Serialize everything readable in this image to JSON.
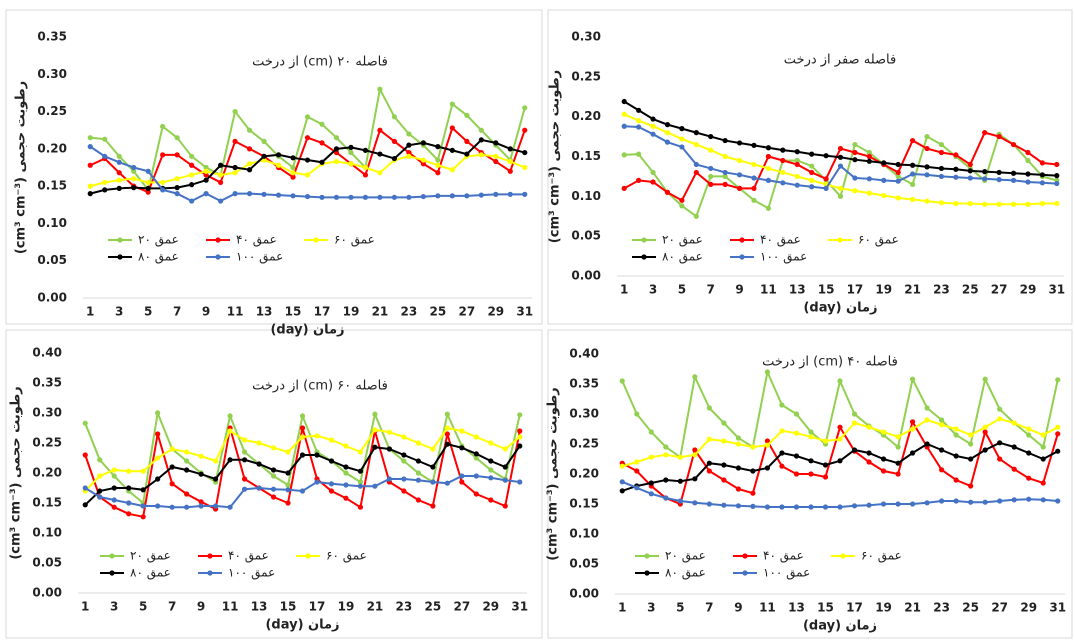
{
  "chart_data": [
    {
      "type": "line",
      "title": "فاصله ۲۰ (cm) از درخت",
      "xlabel": "زمان (day)",
      "ylabel": "رطوبت حجمی (cm³ cm⁻³)",
      "categories": [
        "1",
        null,
        "3",
        null,
        "5",
        null,
        "7",
        null,
        "9",
        null,
        "11",
        null,
        "13",
        null,
        "15",
        null,
        "17",
        null,
        "19",
        null,
        "21",
        null,
        "23",
        null,
        "25",
        null,
        "27",
        null,
        "29",
        null,
        "31"
      ],
      "ylim": [
        0,
        0.35
      ],
      "yticks": [
        {
          "value": 0,
          "label": "0.00"
        },
        {
          "value": 0.05,
          "label": "0.05"
        },
        {
          "value": 0.1,
          "label": "0.10"
        },
        {
          "value": 0.15,
          "label": "0.15"
        },
        {
          "value": 0.2,
          "label": "0.20"
        },
        {
          "value": 0.25,
          "label": "0.25"
        },
        {
          "value": 0.3,
          "label": "0.30"
        },
        {
          "value": 0.35,
          "label": "0.35"
        }
      ],
      "grid": false,
      "series": [
        {
          "name": "عمق ۲۰",
          "color": "#92d050",
          "values": [
            0.215,
            0.213,
            0.19,
            0.17,
            0.145,
            0.23,
            0.215,
            0.19,
            0.175,
            0.165,
            0.25,
            0.225,
            0.21,
            0.19,
            0.175,
            0.243,
            0.233,
            0.215,
            0.195,
            0.175,
            0.28,
            0.243,
            0.22,
            0.205,
            0.185,
            0.26,
            0.245,
            0.225,
            0.205,
            0.185,
            0.255
          ]
        },
        {
          "name": "عمق ۴۰",
          "color": "#ff0000",
          "values": [
            0.178,
            0.187,
            0.168,
            0.15,
            0.142,
            0.192,
            0.192,
            0.178,
            0.165,
            0.155,
            0.21,
            0.2,
            0.19,
            0.175,
            0.162,
            0.215,
            0.208,
            0.195,
            0.18,
            0.165,
            0.225,
            0.21,
            0.195,
            0.18,
            0.168,
            0.228,
            0.21,
            0.195,
            0.183,
            0.17,
            0.225
          ]
        },
        {
          "name": "عمق ۶۰",
          "color": "#ffff00",
          "values": [
            0.15,
            0.155,
            0.158,
            0.16,
            0.155,
            0.155,
            0.16,
            0.165,
            0.17,
            0.165,
            0.168,
            0.18,
            0.185,
            0.178,
            0.168,
            0.165,
            0.18,
            0.183,
            0.18,
            0.175,
            0.168,
            0.185,
            0.19,
            0.185,
            0.178,
            0.172,
            0.19,
            0.192,
            0.19,
            0.183,
            0.175
          ]
        },
        {
          "name": "عمق ۸۰",
          "color": "#000000",
          "values": [
            0.14,
            0.145,
            0.147,
            0.148,
            0.147,
            0.147,
            0.148,
            0.152,
            0.158,
            0.178,
            0.175,
            0.172,
            0.19,
            0.192,
            0.188,
            0.185,
            0.182,
            0.2,
            0.202,
            0.198,
            0.193,
            0.187,
            0.205,
            0.208,
            0.203,
            0.198,
            0.193,
            0.212,
            0.208,
            0.2,
            0.195
          ]
        },
        {
          "name": "عمق ۱۰۰",
          "color": "#4472c4",
          "values": [
            0.203,
            0.19,
            0.182,
            0.175,
            0.17,
            0.145,
            0.14,
            0.13,
            0.14,
            0.13,
            0.14,
            0.14,
            0.139,
            0.138,
            0.137,
            0.136,
            0.135,
            0.135,
            0.135,
            0.135,
            0.135,
            0.135,
            0.135,
            0.136,
            0.137,
            0.137,
            0.137,
            0.138,
            0.139,
            0.139,
            0.139
          ]
        }
      ]
    },
    {
      "type": "line",
      "title": "فاصله صفر از درخت",
      "xlabel": "زمان (day)",
      "ylabel": "رطوبت حجمی (cm³ cm⁻³)",
      "categories": [
        "1",
        null,
        "3",
        null,
        "5",
        null,
        "7",
        null,
        "9",
        null,
        "11",
        null,
        "13",
        null,
        "15",
        null,
        "17",
        null,
        "19",
        null,
        "21",
        null,
        "23",
        null,
        "25",
        null,
        "27",
        null,
        "29",
        null,
        "31"
      ],
      "ylim": [
        0,
        0.3
      ],
      "yticks": [
        {
          "value": 0,
          "label": "0.00"
        },
        {
          "value": 0.05,
          "label": "0.05"
        },
        {
          "value": 0.1,
          "label": "0.10"
        },
        {
          "value": 0.15,
          "label": "0.15"
        },
        {
          "value": 0.2,
          "label": "0.20"
        },
        {
          "value": 0.25,
          "label": "0.25"
        },
        {
          "value": 0.3,
          "label": "0.30"
        }
      ],
      "grid": false,
      "series": [
        {
          "name": "عمق ۲۰",
          "color": "#92d050",
          "values": [
            0.152,
            0.153,
            0.13,
            0.105,
            0.088,
            0.075,
            0.125,
            0.125,
            0.11,
            0.095,
            0.085,
            0.145,
            0.145,
            0.138,
            0.12,
            0.1,
            0.165,
            0.155,
            0.14,
            0.125,
            0.115,
            0.175,
            0.165,
            0.15,
            0.135,
            0.12,
            0.178,
            0.165,
            0.145,
            0.125,
            0.12
          ]
        },
        {
          "name": "عمق ۴۰",
          "color": "#ff0000",
          "values": [
            0.11,
            0.12,
            0.118,
            0.105,
            0.095,
            0.13,
            0.115,
            0.115,
            0.11,
            0.11,
            0.15,
            0.145,
            0.14,
            0.13,
            0.122,
            0.16,
            0.155,
            0.15,
            0.14,
            0.13,
            0.17,
            0.16,
            0.155,
            0.152,
            0.14,
            0.18,
            0.175,
            0.165,
            0.155,
            0.142,
            0.14
          ]
        },
        {
          "name": "عمق ۶۰",
          "color": "#ffff00",
          "values": [
            0.203,
            0.195,
            0.188,
            0.18,
            0.172,
            0.165,
            0.158,
            0.15,
            0.145,
            0.14,
            0.135,
            0.13,
            0.125,
            0.12,
            0.115,
            0.11,
            0.107,
            0.104,
            0.101,
            0.098,
            0.096,
            0.094,
            0.092,
            0.091,
            0.091,
            0.09,
            0.09,
            0.09,
            0.09,
            0.091,
            0.091
          ]
        },
        {
          "name": "عمق ۸۰",
          "color": "#000000",
          "values": [
            0.219,
            0.208,
            0.197,
            0.19,
            0.185,
            0.18,
            0.175,
            0.17,
            0.167,
            0.164,
            0.161,
            0.158,
            0.156,
            0.153,
            0.151,
            0.149,
            0.146,
            0.144,
            0.142,
            0.14,
            0.139,
            0.137,
            0.135,
            0.134,
            0.132,
            0.131,
            0.13,
            0.129,
            0.128,
            0.127,
            0.126
          ]
        },
        {
          "name": "عمق ۱۰۰",
          "color": "#4472c4",
          "values": [
            0.188,
            0.187,
            0.178,
            0.168,
            0.162,
            0.14,
            0.135,
            0.13,
            0.127,
            0.123,
            0.12,
            0.117,
            0.114,
            0.112,
            0.11,
            0.138,
            0.123,
            0.122,
            0.12,
            0.119,
            0.128,
            0.127,
            0.125,
            0.124,
            0.123,
            0.122,
            0.121,
            0.12,
            0.118,
            0.117,
            0.116
          ]
        }
      ]
    },
    {
      "type": "line",
      "title": "فاصله ۶۰ (cm) از درخت",
      "xlabel": "زمان (day)",
      "ylabel": "رطوبت حجمی (cm³ cm⁻³)",
      "categories": [
        "1",
        null,
        "3",
        null,
        "5",
        null,
        "7",
        null,
        "9",
        null,
        "11",
        null,
        "13",
        null,
        "15",
        null,
        "17",
        null,
        "19",
        null,
        "21",
        null,
        "23",
        null,
        "25",
        null,
        "27",
        null,
        "29",
        null,
        "31"
      ],
      "ylim": [
        0,
        0.4
      ],
      "yticks": [
        {
          "value": 0,
          "label": "0.00"
        },
        {
          "value": 0.05,
          "label": "0.05"
        },
        {
          "value": 0.1,
          "label": "0.10"
        },
        {
          "value": 0.15,
          "label": "0.15"
        },
        {
          "value": 0.2,
          "label": "0.20"
        },
        {
          "value": 0.25,
          "label": "0.25"
        },
        {
          "value": 0.3,
          "label": "0.30"
        },
        {
          "value": 0.35,
          "label": "0.35"
        },
        {
          "value": 0.4,
          "label": "0.40"
        }
      ],
      "grid": false,
      "series": [
        {
          "name": "عمق ۲۰",
          "color": "#92d050",
          "values": [
            0.283,
            0.222,
            0.195,
            0.17,
            0.15,
            0.3,
            0.24,
            0.22,
            0.2,
            0.185,
            0.295,
            0.235,
            0.215,
            0.195,
            0.18,
            0.295,
            0.235,
            0.22,
            0.2,
            0.185,
            0.298,
            0.24,
            0.22,
            0.2,
            0.185,
            0.298,
            0.245,
            0.225,
            0.205,
            0.19,
            0.297
          ]
        },
        {
          "name": "عمق ۴۰",
          "color": "#ff0000",
          "values": [
            0.23,
            0.16,
            0.143,
            0.132,
            0.127,
            0.265,
            0.182,
            0.165,
            0.152,
            0.14,
            0.275,
            0.19,
            0.175,
            0.16,
            0.15,
            0.275,
            0.19,
            0.17,
            0.158,
            0.143,
            0.27,
            0.185,
            0.17,
            0.155,
            0.145,
            0.265,
            0.185,
            0.165,
            0.155,
            0.145,
            0.27
          ]
        },
        {
          "name": "عمق ۶۰",
          "color": "#ffff00",
          "values": [
            0.17,
            0.195,
            0.205,
            0.203,
            0.203,
            0.225,
            0.24,
            0.235,
            0.228,
            0.22,
            0.27,
            0.255,
            0.25,
            0.242,
            0.235,
            0.26,
            0.262,
            0.255,
            0.245,
            0.235,
            0.272,
            0.268,
            0.26,
            0.25,
            0.24,
            0.275,
            0.27,
            0.26,
            0.25,
            0.24,
            0.26
          ]
        },
        {
          "name": "عمق ۸۰",
          "color": "#000000",
          "values": [
            0.147,
            0.17,
            0.175,
            0.175,
            0.172,
            0.19,
            0.21,
            0.205,
            0.198,
            0.19,
            0.222,
            0.222,
            0.215,
            0.205,
            0.2,
            0.23,
            0.23,
            0.22,
            0.21,
            0.203,
            0.243,
            0.24,
            0.23,
            0.22,
            0.21,
            0.248,
            0.242,
            0.232,
            0.22,
            0.21,
            0.245
          ]
        },
        {
          "name": "عمق ۱۰۰",
          "color": "#4472c4",
          "values": [
            0.175,
            0.16,
            0.155,
            0.15,
            0.145,
            0.145,
            0.143,
            0.143,
            0.145,
            0.145,
            0.143,
            0.173,
            0.175,
            0.173,
            0.172,
            0.17,
            0.185,
            0.182,
            0.18,
            0.178,
            0.178,
            0.19,
            0.19,
            0.188,
            0.185,
            0.183,
            0.195,
            0.195,
            0.192,
            0.188,
            0.185
          ]
        }
      ]
    },
    {
      "type": "line",
      "title": "فاصله ۴۰ (cm) از درخت",
      "xlabel": "زمان (day)",
      "ylabel": "رطوبت حجمی (cm³ cm⁻³)",
      "categories": [
        "1",
        null,
        "3",
        null,
        "5",
        null,
        "7",
        null,
        "9",
        null,
        "11",
        null,
        "13",
        null,
        "15",
        null,
        "17",
        null,
        "19",
        null,
        "21",
        null,
        "23",
        null,
        "25",
        null,
        "27",
        null,
        "29",
        null,
        "31"
      ],
      "ylim": [
        0,
        0.4
      ],
      "yticks": [
        {
          "value": 0,
          "label": "0.00"
        },
        {
          "value": 0.05,
          "label": "0.05"
        },
        {
          "value": 0.1,
          "label": "0.10"
        },
        {
          "value": 0.15,
          "label": "0.15"
        },
        {
          "value": 0.2,
          "label": "0.20"
        },
        {
          "value": 0.25,
          "label": "0.25"
        },
        {
          "value": 0.3,
          "label": "0.30"
        },
        {
          "value": 0.35,
          "label": "0.35"
        },
        {
          "value": 0.4,
          "label": "0.40"
        }
      ],
      "grid": false,
      "series": [
        {
          "name": "عمق ۲۰",
          "color": "#92d050",
          "values": [
            0.355,
            0.3,
            0.27,
            0.245,
            0.228,
            0.362,
            0.31,
            0.285,
            0.26,
            0.245,
            0.37,
            0.315,
            0.3,
            0.27,
            0.25,
            0.355,
            0.3,
            0.28,
            0.265,
            0.245,
            0.358,
            0.31,
            0.29,
            0.265,
            0.25,
            0.358,
            0.308,
            0.285,
            0.265,
            0.245,
            0.357
          ]
        },
        {
          "name": "عمق ۴۰",
          "color": "#ff0000",
          "values": [
            0.218,
            0.205,
            0.18,
            0.16,
            0.15,
            0.24,
            0.205,
            0.19,
            0.175,
            0.168,
            0.255,
            0.213,
            0.2,
            0.2,
            0.195,
            0.278,
            0.238,
            0.22,
            0.205,
            0.2,
            0.287,
            0.245,
            0.207,
            0.19,
            0.18,
            0.27,
            0.225,
            0.208,
            0.193,
            0.185,
            0.267
          ]
        },
        {
          "name": "عمق ۶۰",
          "color": "#ffff00",
          "values": [
            0.213,
            0.22,
            0.228,
            0.232,
            0.228,
            0.232,
            0.258,
            0.255,
            0.25,
            0.245,
            0.248,
            0.272,
            0.268,
            0.262,
            0.255,
            0.258,
            0.285,
            0.278,
            0.27,
            0.262,
            0.275,
            0.29,
            0.282,
            0.275,
            0.265,
            0.278,
            0.292,
            0.285,
            0.275,
            0.265,
            0.278
          ]
        },
        {
          "name": "عمق ۸۰",
          "color": "#000000",
          "values": [
            0.172,
            0.18,
            0.185,
            0.19,
            0.188,
            0.192,
            0.218,
            0.215,
            0.21,
            0.205,
            0.21,
            0.235,
            0.23,
            0.222,
            0.215,
            0.222,
            0.24,
            0.235,
            0.225,
            0.218,
            0.235,
            0.25,
            0.24,
            0.23,
            0.225,
            0.24,
            0.252,
            0.245,
            0.235,
            0.225,
            0.238
          ]
        },
        {
          "name": "عمق ۱۰۰",
          "color": "#4472c4",
          "values": [
            0.187,
            0.177,
            0.167,
            0.16,
            0.155,
            0.152,
            0.15,
            0.148,
            0.147,
            0.146,
            0.145,
            0.145,
            0.145,
            0.145,
            0.145,
            0.145,
            0.147,
            0.148,
            0.15,
            0.15,
            0.15,
            0.152,
            0.155,
            0.155,
            0.153,
            0.153,
            0.155,
            0.157,
            0.158,
            0.157,
            0.155
          ]
        }
      ]
    }
  ]
}
